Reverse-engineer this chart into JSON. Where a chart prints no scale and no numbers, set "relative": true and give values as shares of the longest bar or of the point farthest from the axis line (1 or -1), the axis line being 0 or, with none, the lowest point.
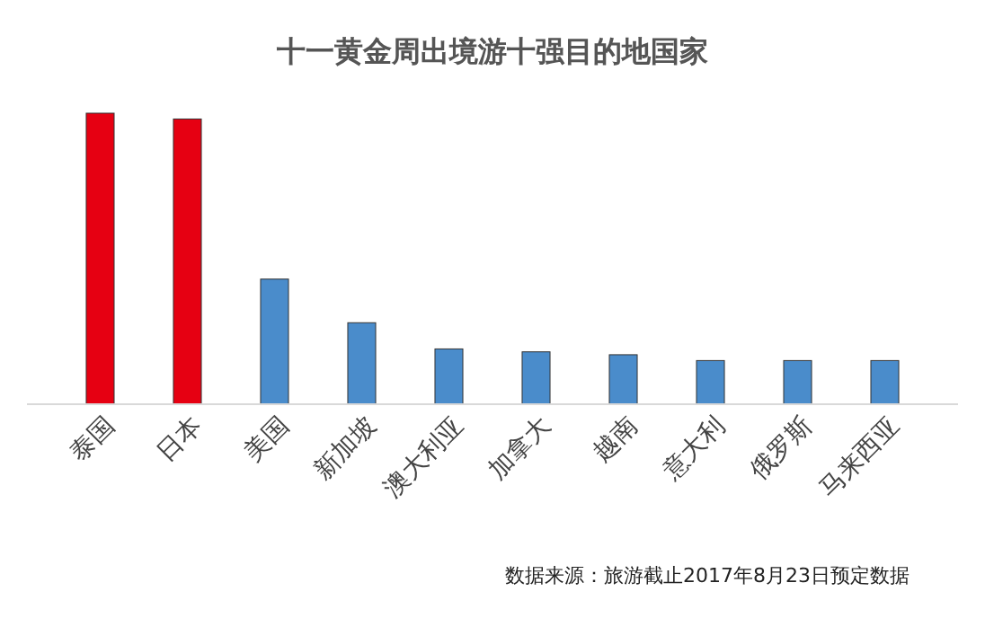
{
  "chart_data": {
    "type": "bar",
    "title": "十一黄金周出境游十强目的地国家",
    "relative": true,
    "categories": [
      "泰国",
      "日本",
      "美国",
      "新加坡",
      "澳大利亚",
      "加拿大",
      "越南",
      "意大利",
      "俄罗斯",
      "马来西亚"
    ],
    "values": [
      1,
      0.98,
      0.43,
      0.28,
      0.19,
      0.18,
      0.17,
      0.15,
      0.15,
      0.15
    ],
    "colors": [
      "#e60012",
      "#e60012",
      "#4a8ccb",
      "#4a8ccb",
      "#4a8ccb",
      "#4a8ccb",
      "#4a8ccb",
      "#4a8ccb",
      "#4a8ccb",
      "#4a8ccb"
    ],
    "annotations": [
      "数据来源：旅游截止2017年8月23日预定数据"
    ]
  }
}
